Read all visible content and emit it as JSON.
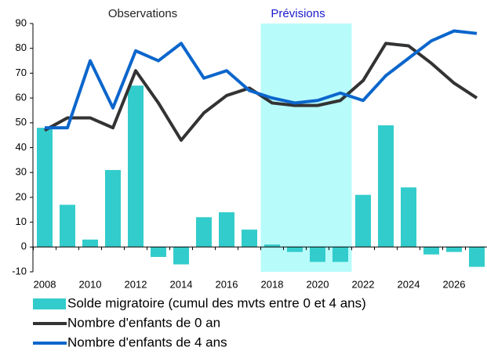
{
  "chart_data": {
    "type": "bar-line",
    "annotations": [
      {
        "text": "Observations",
        "color": "#222222"
      },
      {
        "text": "Prévisions",
        "color": "#1a1acc"
      }
    ],
    "forecast_band": {
      "from": 2018,
      "to": 2021,
      "color": "#b8fbfb"
    },
    "categories": [
      2008,
      null,
      2010,
      null,
      2012,
      null,
      2014,
      null,
      2016,
      null,
      2018,
      null,
      2020,
      null,
      2022,
      null,
      2024,
      null,
      2026,
      null
    ],
    "ylim": [
      -10,
      90
    ],
    "yticks": [
      -10,
      0,
      10,
      20,
      30,
      40,
      50,
      60,
      70,
      80,
      90
    ],
    "series": [
      {
        "name": "Solde migratoire (cumul des mvts entre 0 et 4 ans)",
        "type": "bar",
        "color": "#33cccc",
        "values": [
          48,
          17,
          3,
          31,
          65,
          -4,
          -7,
          12,
          14,
          7,
          1,
          -2,
          -6,
          -6,
          21,
          49,
          24,
          -3,
          -2,
          -8
        ]
      },
      {
        "name": "Nombre d'enfants de 0 an",
        "type": "line",
        "color": "#333333",
        "values": [
          47,
          52,
          52,
          48,
          71,
          58,
          43,
          54,
          61,
          64,
          58,
          57,
          57,
          59,
          67,
          82,
          81,
          74,
          66,
          60
        ]
      },
      {
        "name": "Nombre d'enfants de 4 ans",
        "type": "line",
        "color": "#0b66cc",
        "values": [
          48,
          48,
          75,
          56,
          79,
          75,
          82,
          68,
          71,
          63,
          60,
          58,
          59,
          62,
          59,
          69,
          76,
          83,
          87,
          86
        ]
      }
    ]
  }
}
